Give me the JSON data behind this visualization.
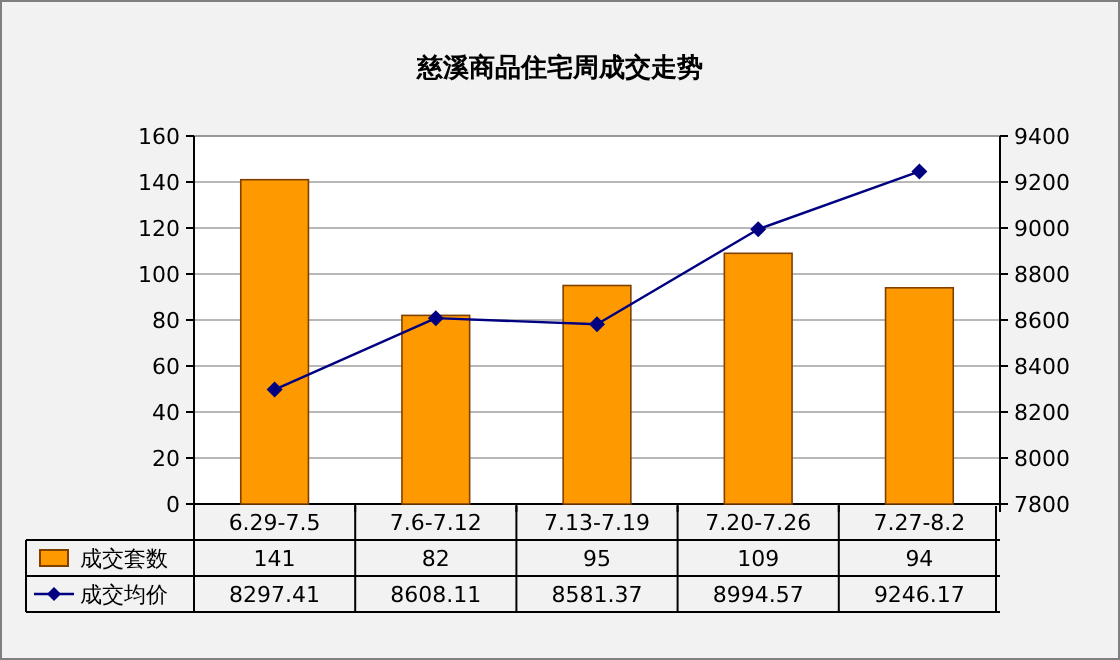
{
  "chart_data": {
    "type": "bar",
    "title": "慈溪商品住宅周成交走势",
    "categories": [
      "6.29-7.5",
      "7.6-7.12",
      "7.13-7.19",
      "7.20-7.26",
      "7.27-8.2"
    ],
    "series": [
      {
        "name": "成交套数",
        "color": "#ff9900",
        "values": [
          141,
          82,
          95,
          109,
          94
        ]
      },
      {
        "name": "成交均价",
        "type": "line",
        "axis": "y2",
        "color": "#000080",
        "marker": "diamond",
        "values": [
          8297.41,
          8608.11,
          8581.37,
          8994.57,
          9246.17
        ]
      }
    ],
    "ylim": [
      0,
      160
    ],
    "yticks": [
      0,
      20,
      40,
      60,
      80,
      100,
      120,
      140,
      160
    ],
    "y2lim": [
      7800,
      9400
    ],
    "y2ticks": [
      7800,
      8000,
      8200,
      8400,
      8600,
      8800,
      9000,
      9200,
      9400
    ],
    "grid": "y",
    "legend": "bottom",
    "data_labels": true
  }
}
